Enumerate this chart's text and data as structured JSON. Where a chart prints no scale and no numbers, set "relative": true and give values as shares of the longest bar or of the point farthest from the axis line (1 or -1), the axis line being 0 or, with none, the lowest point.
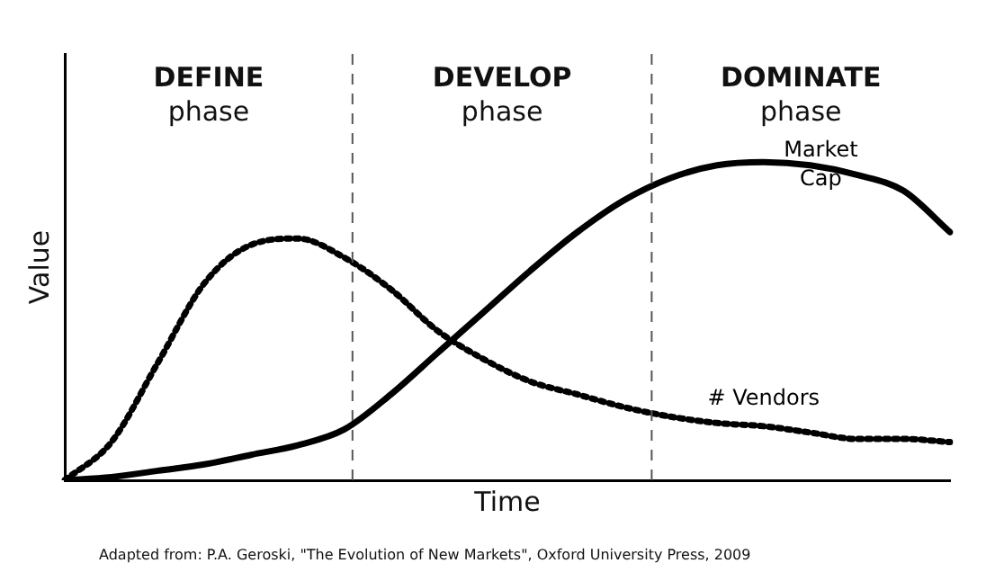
{
  "chart_data": {
    "type": "line",
    "relative": true,
    "xlabel": "Time",
    "ylabel": "Value",
    "categories": [
      null,
      null,
      null,
      null,
      null,
      null,
      null,
      null,
      null,
      null,
      null,
      null,
      null,
      null,
      null,
      null,
      null,
      null,
      null,
      null
    ],
    "series": [
      {
        "name": "Market Cap",
        "color": "#000000",
        "line_style": "solid",
        "values": [
          0,
          0.01,
          0.03,
          0.05,
          0.08,
          0.11,
          0.16,
          0.27,
          0.4,
          0.53,
          0.66,
          0.78,
          0.88,
          0.95,
          0.99,
          1.0,
          0.99,
          0.96,
          0.91,
          0.78
        ]
      },
      {
        "name": "# Vendors",
        "color": "#000000",
        "line_style": "dotted",
        "values": [
          0,
          0.12,
          0.37,
          0.62,
          0.74,
          0.76,
          0.7,
          0.6,
          0.47,
          0.38,
          0.31,
          0.27,
          0.23,
          0.2,
          0.18,
          0.17,
          0.15,
          0.13,
          0.13,
          0.12
        ]
      }
    ],
    "annotations": [
      "DEFINE\nphase",
      "DEVELOP\nphase",
      "DOMINATE\nphase",
      "Adapted from: P.A. Geroski, \"The Evolution of New Markets\", Oxford University Press, 2009"
    ],
    "grid": false,
    "legend": false,
    "marker": "none"
  }
}
